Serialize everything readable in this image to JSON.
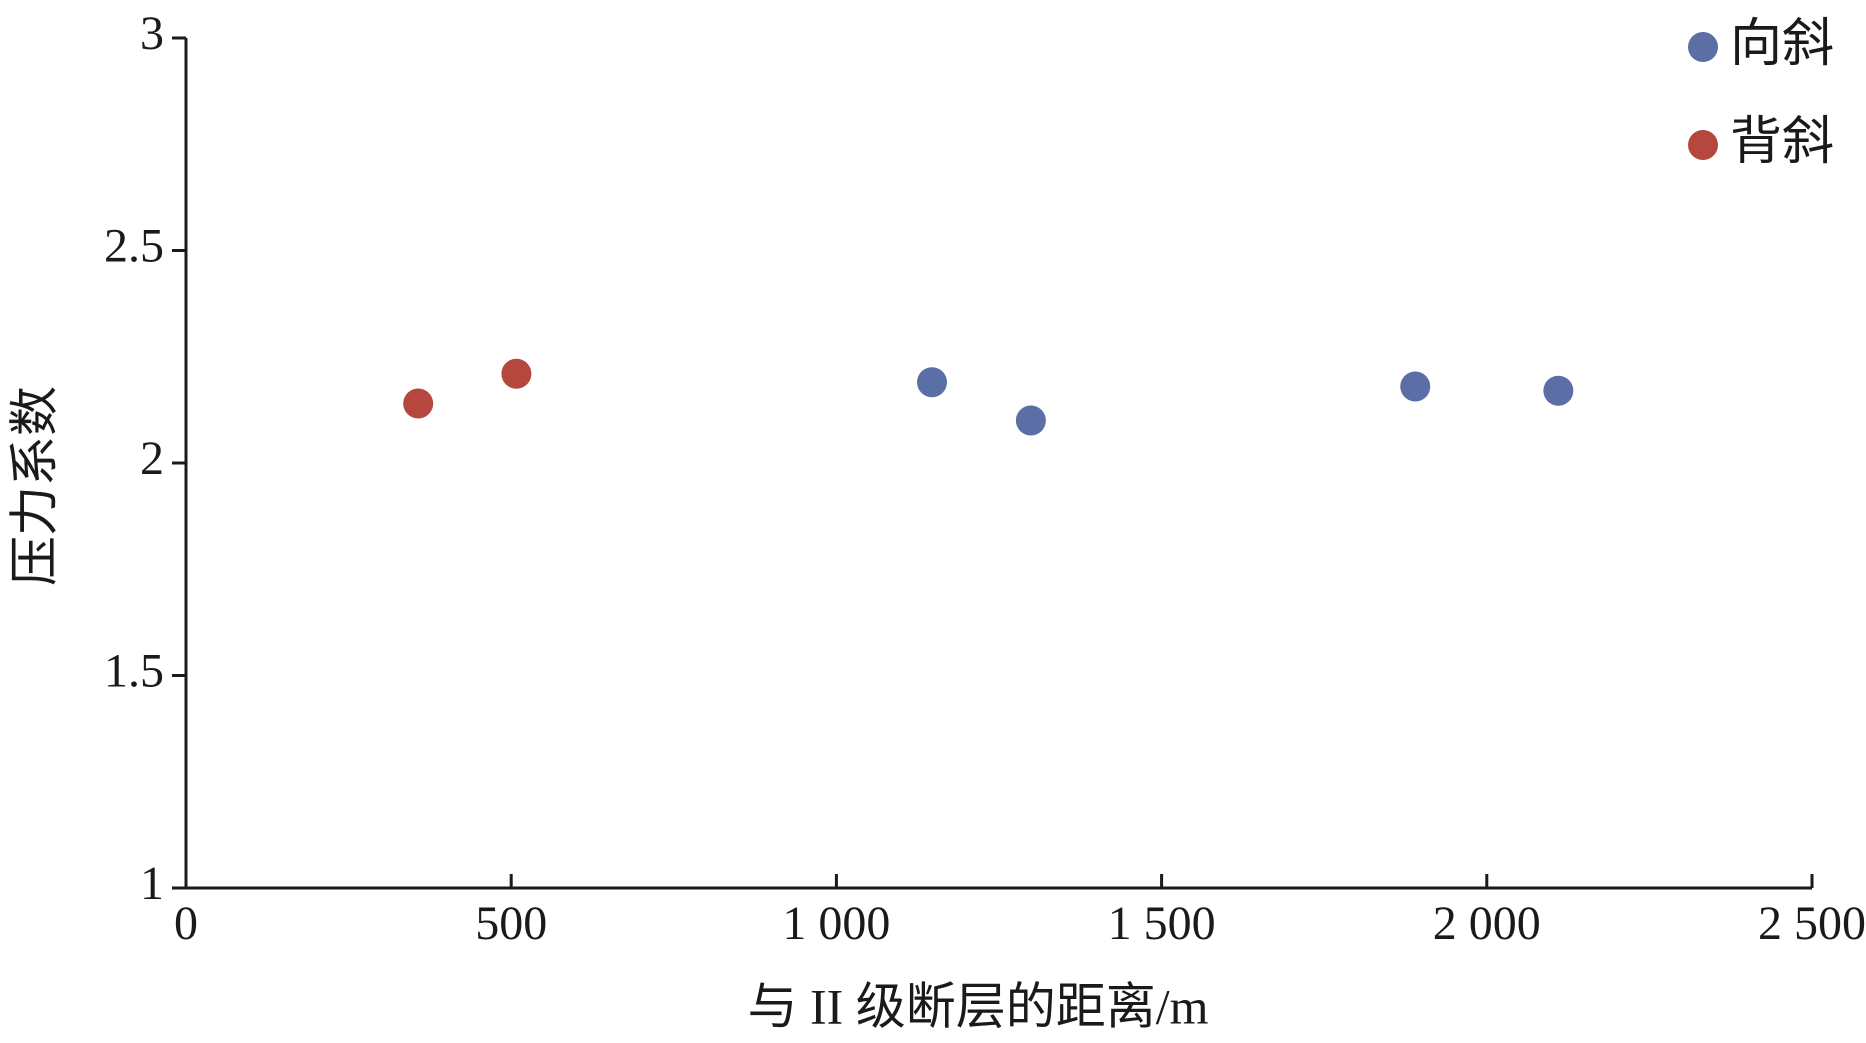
{
  "chart_data": {
    "type": "scatter",
    "x_label": "与 II 级断层的距离/m",
    "y_label": "压力系数",
    "xlim": [
      0,
      2500
    ],
    "ylim": [
      1,
      3
    ],
    "xticks": [
      0,
      500,
      {
        "value": 1000,
        "label": "1 000"
      },
      {
        "value": 1500,
        "label": "1 500"
      },
      {
        "value": 2000,
        "label": "2 000"
      },
      {
        "value": 2500,
        "label": "2 500"
      }
    ],
    "yticks": [
      1,
      1.5,
      2,
      2.5,
      3
    ],
    "legend": "top-right",
    "series": [
      {
        "name": "向斜",
        "color": "#5b6ea6",
        "x": [
          1147,
          1299,
          1890,
          2110
        ],
        "values": [
          2.19,
          2.1,
          2.18,
          2.17
        ]
      },
      {
        "name": "背斜",
        "color": "#b5473f",
        "x": [
          357,
          508
        ],
        "values": [
          2.14,
          2.21
        ]
      }
    ]
  }
}
